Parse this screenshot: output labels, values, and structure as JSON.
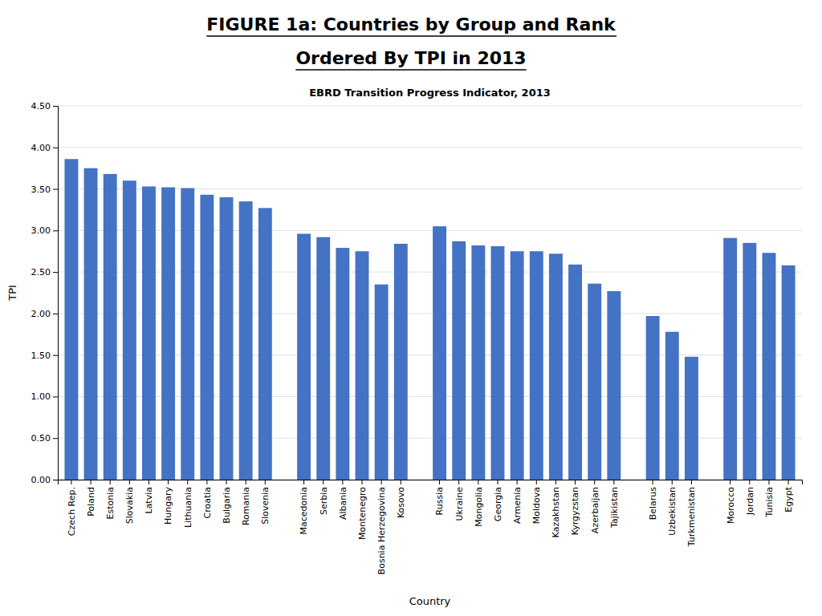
{
  "chart_data": {
    "type": "bar",
    "title": [
      "FIGURE 1a: Countries by Group and Rank",
      "Ordered By TPI in 2013"
    ],
    "subtitle": "EBRD Transition Progress Indicator, 2013",
    "x_label": "Country",
    "y_label": "TPI",
    "categories": [
      "Czech Rep.",
      "Poland",
      "Estonia",
      "Slovakia",
      "Latvia",
      "Hungary",
      "Lithuania",
      "Croatia",
      "Bulgaria",
      "Romania",
      "Slovenia",
      null,
      "Macedonia",
      "Serbia",
      "Albania",
      "Montenegro",
      "Bosnia Herzegovina",
      "Kosovo",
      null,
      "Russia",
      "Ukraine",
      "Mongolia",
      "Georgia",
      "Armenia",
      "Moldova",
      "Kazakhstan",
      "Kyrgyzstan",
      "Azerbaijan",
      "Tajikistan",
      null,
      "Belarus",
      "Uzbekistan",
      "Turkmenistan",
      null,
      "Morocco",
      "Jordan",
      "Tunisia",
      "Egypt"
    ],
    "values": [
      3.86,
      3.75,
      3.68,
      3.6,
      3.53,
      3.52,
      3.51,
      3.43,
      3.4,
      3.35,
      3.27,
      0,
      2.96,
      2.92,
      2.79,
      2.75,
      2.35,
      2.84,
      0,
      3.05,
      2.87,
      2.82,
      2.81,
      2.75,
      2.75,
      2.72,
      2.59,
      2.36,
      2.27,
      0,
      1.97,
      1.78,
      1.48,
      0,
      2.91,
      2.85,
      2.73,
      2.58
    ],
    "color": "#4472C4",
    "ylim": [
      0,
      4.5
    ],
    "yticks": [
      {
        "value": 0,
        "label": "0.00"
      },
      {
        "value": 0.5,
        "label": "0.50"
      },
      {
        "value": 1,
        "label": "1.00"
      },
      {
        "value": 1.5,
        "label": "1.50"
      },
      {
        "value": 2,
        "label": "2.00"
      },
      {
        "value": 2.5,
        "label": "2.50"
      },
      {
        "value": 3,
        "label": "3.00"
      },
      {
        "value": 3.5,
        "label": "3.50"
      },
      {
        "value": 4,
        "label": "4.00"
      },
      {
        "value": 4.5,
        "label": "4.50"
      }
    ],
    "grid": true
  }
}
